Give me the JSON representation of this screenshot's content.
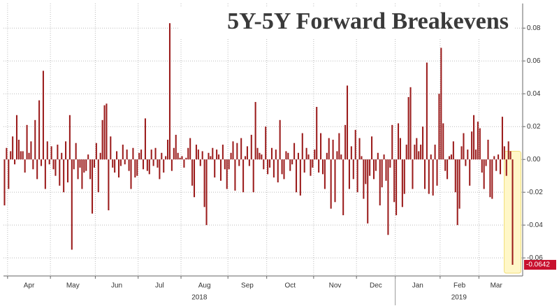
{
  "chart_data": {
    "type": "bar",
    "title": "5Y-5Y Forward Breakevens",
    "color": "#9b1b1b",
    "grid": true,
    "ylim": [
      -0.071,
      0.095
    ],
    "yticks": [
      -0.06,
      -0.04,
      -0.02,
      {
        "value": 0,
        "label": "0.00"
      },
      0.02,
      0.04,
      0.06,
      0.08
    ],
    "year_labels": [
      "2018",
      "2019"
    ],
    "categories": [
      null,
      null,
      "Apr",
      "Apr",
      "Apr",
      "Apr",
      "Apr",
      "Apr",
      "Apr",
      "Apr",
      "Apr",
      "Apr",
      "Apr",
      "Apr",
      "Apr",
      "Apr",
      "Apr",
      "Apr",
      "Apr",
      "Apr",
      "Apr",
      "Apr",
      "Apr",
      "May",
      "May",
      "May",
      "May",
      "May",
      "May",
      "May",
      "May",
      "May",
      "May",
      "May",
      "May",
      "May",
      "May",
      "May",
      "May",
      "May",
      "May",
      "May",
      "May",
      "May",
      "May",
      "Jun",
      "Jun",
      "Jun",
      "Jun",
      "Jun",
      "Jun",
      "Jun",
      "Jun",
      "Jun",
      "Jun",
      "Jun",
      "Jun",
      "Jun",
      "Jun",
      "Jun",
      "Jun",
      "Jun",
      "Jun",
      "Jun",
      "Jun",
      "Jun",
      "Jul",
      "Jul",
      "Jul",
      "Jul",
      "Jul",
      "Jul",
      "Jul",
      "Jul",
      "Jul",
      "Jul",
      "Jul",
      "Jul",
      "Jul",
      "Jul",
      "Jul",
      "Jul",
      "Jul",
      "Jul",
      "Jul",
      "Jul",
      "Jul",
      "Aug",
      "Aug",
      "Aug",
      "Aug",
      "Aug",
      "Aug",
      "Aug",
      "Aug",
      "Aug",
      "Aug",
      "Aug",
      "Aug",
      "Aug",
      "Aug",
      "Aug",
      "Aug",
      "Aug",
      "Aug",
      "Aug",
      "Aug",
      "Aug",
      "Aug",
      "Aug",
      "Sep",
      "Sep",
      "Sep",
      "Sep",
      "Sep",
      "Sep",
      "Sep",
      "Sep",
      "Sep",
      "Sep",
      "Sep",
      "Sep",
      "Sep",
      "Sep",
      "Sep",
      "Sep",
      "Sep",
      "Sep",
      "Sep",
      "Oct",
      "Oct",
      "Oct",
      "Oct",
      "Oct",
      "Oct",
      "Oct",
      "Oct",
      "Oct",
      "Oct",
      "Oct",
      "Oct",
      "Oct",
      "Oct",
      "Oct",
      "Oct",
      "Oct",
      "Oct",
      "Oct",
      "Oct",
      "Oct",
      "Oct",
      "Oct",
      "Nov",
      "Nov",
      "Nov",
      "Nov",
      "Nov",
      "Nov",
      "Nov",
      "Nov",
      "Nov",
      "Nov",
      "Nov",
      "Nov",
      "Nov",
      "Nov",
      "Nov",
      "Nov",
      "Nov",
      "Nov",
      "Nov",
      "Nov",
      "Nov",
      "Dec",
      "Dec",
      "Dec",
      "Dec",
      "Dec",
      "Dec",
      "Dec",
      "Dec",
      "Dec",
      "Dec",
      "Dec",
      "Dec",
      "Dec",
      "Dec",
      "Dec",
      "Dec",
      "Dec",
      "Dec",
      "Dec",
      "Jan",
      "Jan",
      "Jan",
      "Jan",
      "Jan",
      "Jan",
      "Jan",
      "Jan",
      "Jan",
      "Jan",
      "Jan",
      "Jan",
      "Jan",
      "Jan",
      "Jan",
      "Jan",
      "Jan",
      "Jan",
      "Jan",
      "Jan",
      "Jan",
      "Jan",
      "Feb",
      "Feb",
      "Feb",
      "Feb",
      "Feb",
      "Feb",
      "Feb",
      "Feb",
      "Feb",
      "Feb",
      "Feb",
      "Feb",
      "Feb",
      "Feb",
      "Feb",
      "Feb",
      "Feb",
      "Feb",
      "Feb",
      "Mar",
      "Mar",
      "Mar",
      "Mar",
      "Mar",
      "Mar",
      "Mar",
      "Mar",
      "Mar",
      "Mar",
      "Mar",
      "Mar",
      "Mar",
      "Mar",
      "Mar",
      "Mar",
      "Mar"
    ],
    "values": [
      -0.028,
      0.007,
      -0.018,
      0.005,
      0.014,
      -0.003,
      0.027,
      0.012,
      0.005,
      0.005,
      -0.008,
      0.021,
      0.004,
      0.011,
      -0.006,
      0.024,
      -0.012,
      0.036,
      -0.004,
      0.054,
      -0.018,
      0.011,
      -0.003,
      0.008,
      -0.006,
      -0.01,
      0.009,
      -0.016,
      0.004,
      -0.02,
      0.011,
      -0.014,
      0.027,
      -0.055,
      -0.006,
      0.01,
      -0.012,
      -0.005,
      -0.018,
      -0.008,
      -0.007,
      0.003,
      -0.012,
      -0.033,
      -0.005,
      0.01,
      -0.02,
      0.004,
      0.024,
      0.033,
      0.034,
      -0.031,
      0.014,
      -0.005,
      -0.008,
      0.005,
      -0.011,
      -0.004,
      0.009,
      -0.003,
      0.006,
      -0.007,
      -0.018,
      0.007,
      -0.011,
      -0.01,
      0.004,
      0.006,
      -0.006,
      0.025,
      -0.007,
      -0.009,
      0.006,
      -0.004,
      0.007,
      -0.005,
      -0.012,
      0.004,
      -0.008,
      0.002,
      0.012,
      0.083,
      -0.007,
      0.007,
      0.015,
      0.004,
      0.001,
      0.002,
      -0.005,
      0.001,
      0.007,
      0.013,
      -0.016,
      -0.023,
      0.009,
      0.006,
      -0.004,
      0.005,
      -0.029,
      -0.04,
      0.004,
      0.002,
      0.007,
      -0.011,
      0.006,
      0.003,
      -0.013,
      0.009,
      -0.006,
      -0.018,
      -0.006,
      0.004,
      0.011,
      -0.019,
      0.01,
      -0.004,
      0.013,
      -0.02,
      0.002,
      0.008,
      -0.004,
      0.015,
      -0.02,
      0.035,
      0.007,
      0.004,
      0.003,
      -0.006,
      0.02,
      -0.009,
      -0.005,
      0.007,
      -0.011,
      0.006,
      -0.014,
      0.024,
      -0.009,
      -0.012,
      0.005,
      0.004,
      -0.007,
      -0.003,
      0.01,
      -0.02,
      0.004,
      -0.022,
      0.016,
      -0.008,
      0.007,
      0.003,
      -0.01,
      -0.005,
      0.006,
      0.032,
      -0.008,
      0.016,
      -0.009,
      -0.018,
      0.004,
      0.013,
      -0.03,
      0.012,
      -0.026,
      0.005,
      0.016,
      0.003,
      -0.034,
      0.021,
      0.045,
      -0.018,
      0.008,
      -0.012,
      0.018,
      -0.02,
      0.013,
      0.002,
      -0.024,
      -0.015,
      -0.039,
      -0.01,
      0.014,
      -0.012,
      -0.007,
      0.004,
      -0.028,
      -0.017,
      0.003,
      -0.013,
      -0.046,
      -0.005,
      0.021,
      -0.026,
      -0.034,
      0.022,
      0.013,
      -0.029,
      -0.021,
      0.009,
      0.038,
      0.044,
      -0.018,
      0.009,
      0.013,
      0.005,
      0.009,
      0.02,
      -0.018,
      0.059,
      -0.021,
      0.003,
      -0.022,
      0.009,
      -0.016,
      0.04,
      0.068,
      0.022,
      -0.007,
      -0.012,
      0.002,
      0.003,
      0.011,
      -0.02,
      -0.04,
      -0.03,
      0.008,
      0.016,
      -0.004,
      0.006,
      -0.016,
      0.017,
      0.027,
      0.006,
      0.023,
      0.019,
      -0.008,
      -0.018,
      -0.004,
      0.012,
      -0.023,
      -0.024,
      0.002,
      -0.007,
      0.003,
      -0.009,
      0.026,
      0.008,
      -0.01,
      0.011,
      0.005,
      -0.0642
    ]
  }
}
